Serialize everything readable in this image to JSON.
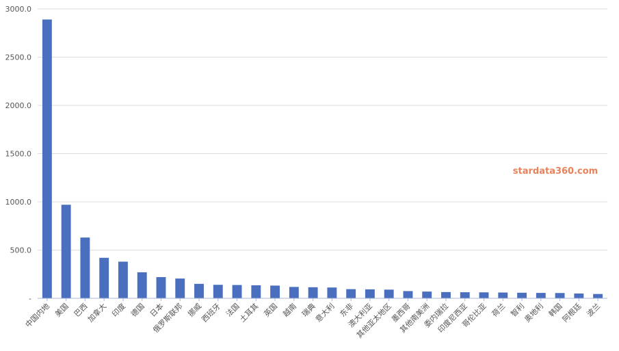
{
  "watermark": "stardata360.com",
  "chart_data": {
    "type": "bar",
    "title": "",
    "xlabel": "",
    "ylabel": "",
    "ylim": [
      0,
      3000
    ],
    "yticks": [
      "3000.0",
      "2500.0",
      "2000.0",
      "1500.0",
      "1000.0",
      "500.0",
      "-"
    ],
    "grid": true,
    "bar_color": "#4a6fbf",
    "categories": [
      "中国内地",
      "美国",
      "巴西",
      "加拿大",
      "印度",
      "德国",
      "日本",
      "俄罗斯联邦",
      "挪威",
      "西班牙",
      "法国",
      "土耳其",
      "英国",
      "越南",
      "瑞典",
      "意大利",
      "东非",
      "澳大利亚",
      "其他亚太地区",
      "墨西哥",
      "其他南美洲",
      "委内瑞拉",
      "印度尼西亚",
      "哥伦比亚",
      "荷兰",
      "智利",
      "奥地利",
      "韩国",
      "阿根廷",
      "波兰"
    ],
    "values": [
      2890,
      970,
      630,
      420,
      380,
      270,
      220,
      205,
      150,
      140,
      138,
      135,
      132,
      118,
      115,
      112,
      95,
      93,
      90,
      75,
      70,
      65,
      63,
      62,
      60,
      58,
      56,
      55,
      50,
      45
    ]
  }
}
